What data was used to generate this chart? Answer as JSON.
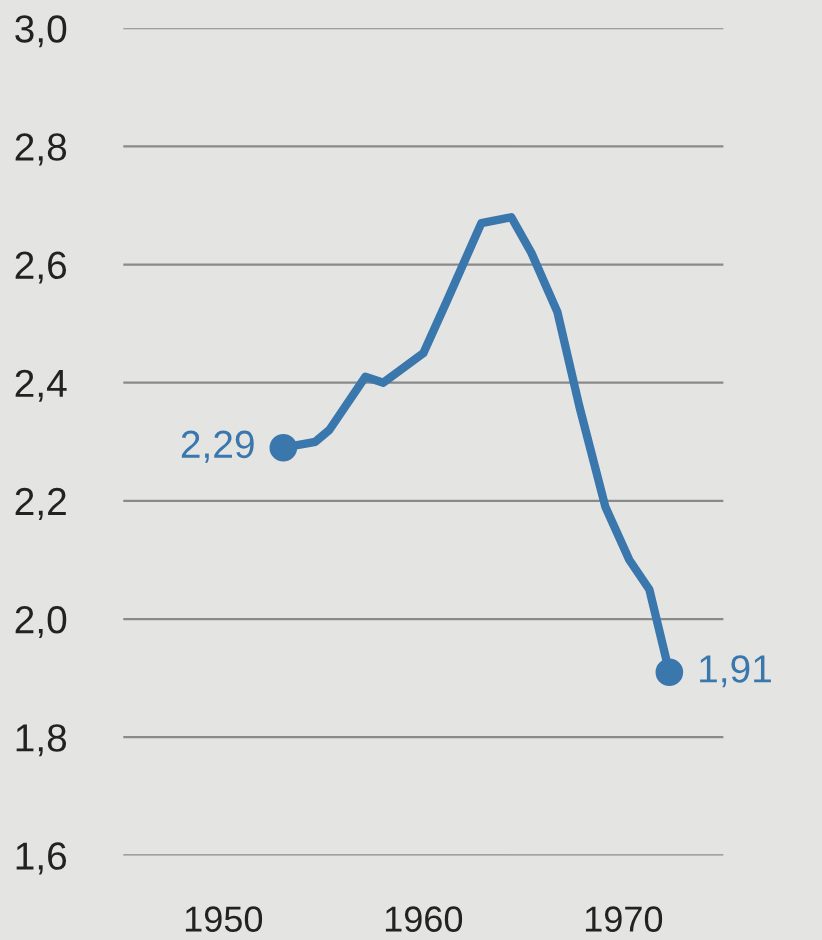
{
  "chart_data": {
    "type": "line",
    "x": [
      1953,
      1954.6,
      1955.3,
      1957.1,
      1958,
      1960,
      1961.2,
      1962.9,
      1964.4,
      1965.4,
      1966.7,
      1967.8,
      1969.1,
      1970.3,
      1971.3,
      1972.3
    ],
    "series": [
      {
        "color": "#3a77ad",
        "values": [
          2.29,
          2.3,
          2.32,
          2.41,
          2.4,
          2.45,
          2.54,
          2.67,
          2.68,
          2.62,
          2.52,
          2.36,
          2.19,
          2.1,
          2.05,
          1.91
        ]
      },
      {
        "type": "scatter",
        "color": "#3a77ad",
        "x": [
          1953,
          1972.3
        ],
        "values": [
          2.29,
          1.91
        ],
        "value_labels": [
          "2,29",
          "1,91"
        ]
      }
    ],
    "xlim": [
      1945,
      1975
    ],
    "xticks": [
      1950,
      1960,
      1970
    ],
    "ylim": [
      1.6,
      3.0
    ],
    "yticks": [
      {
        "value": 1.6,
        "label": "1,6"
      },
      {
        "value": 1.8,
        "label": "1,8"
      },
      {
        "value": 2.0,
        "label": "2,0"
      },
      {
        "value": 2.2,
        "label": "2,2"
      },
      {
        "value": 2.4,
        "label": "2,4"
      },
      {
        "value": 2.6,
        "label": "2,6"
      },
      {
        "value": 2.8,
        "label": "2,8"
      },
      {
        "value": 3.0,
        "label": "3,0"
      }
    ],
    "grid": "y"
  }
}
